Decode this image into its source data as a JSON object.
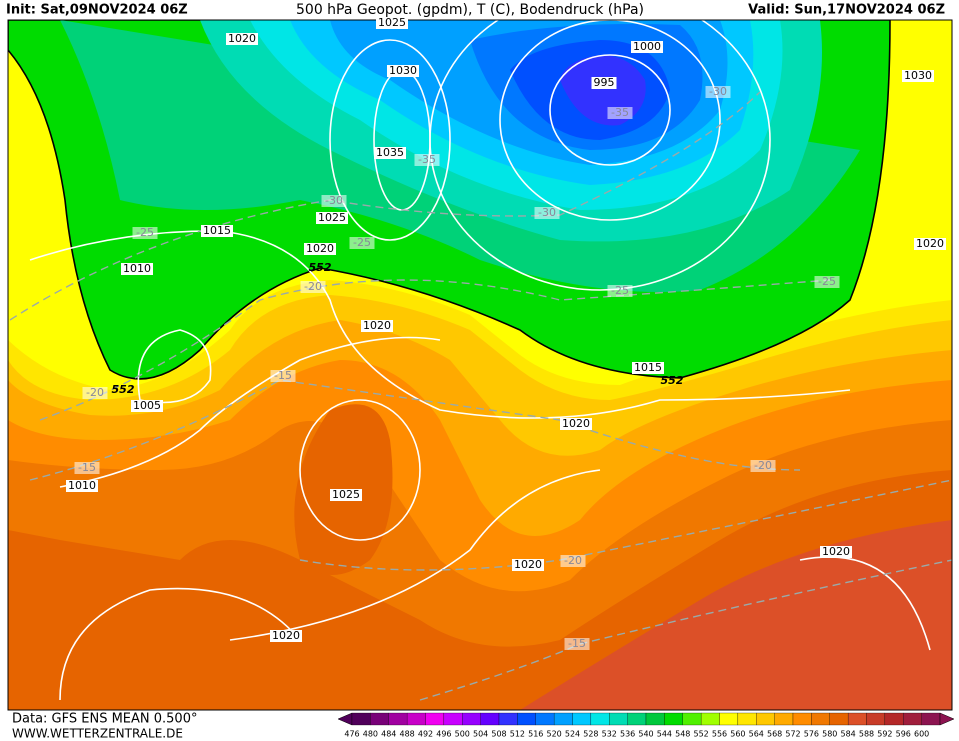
{
  "header": {
    "init": "Init: Sat,09NOV2024 06Z",
    "title": "500 hPa Geopot. (gpdm), T (C), Bodendruck (hPa)",
    "valid": "Valid: Sun,17NOV2024 06Z"
  },
  "map": {
    "labels": [
      "1025",
      "1020",
      "1030",
      "1000",
      "995",
      "-35",
      "-30",
      "1030",
      "1035",
      "-35",
      "-30",
      "1025",
      "-30",
      "-25",
      "1015",
      "1020",
      "-25",
      "552",
      "1020",
      "1010",
      "-20",
      "-25",
      "-25",
      "1020",
      "-15",
      "-20",
      "552",
      "1015",
      "552",
      "1005",
      "1020",
      "-20",
      "-15",
      "1010",
      "1025",
      "1020",
      "1020",
      "-20",
      "-15",
      "1020"
    ]
  },
  "colorbar": {
    "labels": [
      476,
      480,
      484,
      488,
      492,
      496,
      500,
      504,
      508,
      512,
      516,
      520,
      524,
      528,
      532,
      536,
      540,
      544,
      548,
      552,
      556,
      560,
      564,
      568,
      572,
      576,
      580,
      584,
      588,
      592,
      596,
      600
    ],
    "colors": [
      "#50005a",
      "#780078",
      "#a000a0",
      "#c800c8",
      "#f000f0",
      "#c800ff",
      "#9600ff",
      "#6400ff",
      "#3232ff",
      "#0050ff",
      "#0078ff",
      "#00a0ff",
      "#00c8ff",
      "#00e6e6",
      "#00dcb4",
      "#00d278",
      "#00c83c",
      "#00dc00",
      "#50f000",
      "#a0ff00",
      "#ffff00",
      "#ffe600",
      "#ffc800",
      "#ffaa00",
      "#ff8c00",
      "#f07800",
      "#e66400",
      "#dc5028",
      "#c83c28",
      "#b42828",
      "#a01e3c",
      "#8c1450"
    ]
  },
  "footer": {
    "source": "Data: GFS ENS MEAN 0.500°",
    "site": "WWW.WETTERZENTRALE.DE"
  }
}
